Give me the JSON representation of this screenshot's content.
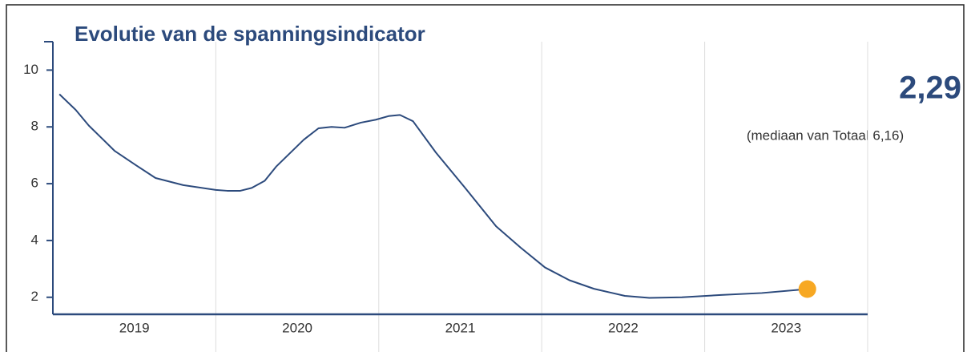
{
  "chart_data": {
    "type": "line",
    "title": "Evolutie van de spanningsindicator",
    "headline": "2,29",
    "note": "(mediaan van Totaal 6,16)",
    "series": [
      {
        "color": "#2c4a7c",
        "x": [
          2019.04,
          2019.14,
          2019.22,
          2019.38,
          2019.51,
          2019.63,
          2019.8,
          2020.0,
          2020.07,
          2020.15,
          2020.22,
          2020.3,
          2020.37,
          2020.54,
          2020.63,
          2020.71,
          2020.79,
          2020.89,
          2020.98,
          2021.06,
          2021.13,
          2021.21,
          2021.35,
          2021.53,
          2021.72,
          2021.87,
          2022.02,
          2022.17,
          2022.32,
          2022.51,
          2022.66,
          2022.86,
          2023.1,
          2023.35,
          2023.63
        ],
        "values": [
          9.15,
          8.6,
          8.05,
          7.15,
          6.65,
          6.2,
          5.95,
          5.78,
          5.75,
          5.75,
          5.85,
          6.1,
          6.6,
          7.55,
          7.95,
          8.0,
          7.97,
          8.15,
          8.25,
          8.38,
          8.42,
          8.2,
          7.1,
          5.85,
          4.5,
          3.75,
          3.05,
          2.6,
          2.3,
          2.05,
          1.98,
          2.0,
          2.08,
          2.15,
          2.29
        ]
      }
    ],
    "marker_color": "#f7a823",
    "xlim": [
      2019,
      2024
    ],
    "xticks": [
      {
        "value": 2019.5,
        "label": "2019"
      },
      {
        "value": 2020.5,
        "label": "2020"
      },
      {
        "value": 2021.5,
        "label": "2021"
      },
      {
        "value": 2022.5,
        "label": "2022"
      },
      {
        "value": 2023.5,
        "label": "2023"
      }
    ],
    "xgrid": [
      2020,
      2021,
      2022,
      2023,
      2024
    ],
    "ylim": [
      1.4,
      11
    ],
    "yticks": [
      2,
      4,
      6,
      8,
      10
    ]
  }
}
